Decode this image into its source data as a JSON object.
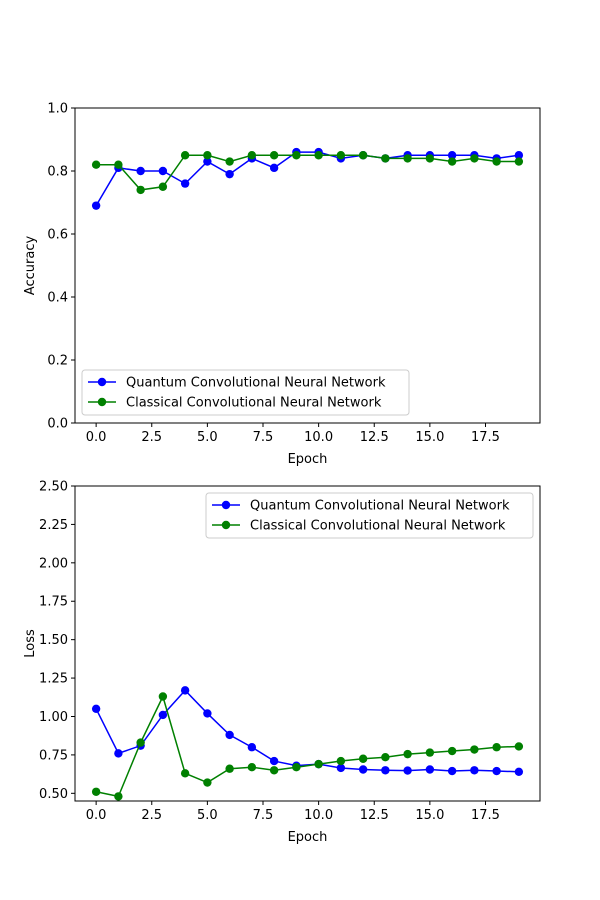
{
  "chart_data": [
    {
      "type": "line",
      "xlabel": "Epoch",
      "ylabel": "Accuracy",
      "xlim": [
        -0.95,
        19.95
      ],
      "ylim": [
        0.0,
        1.0
      ],
      "xticks": [
        0,
        2.5,
        5,
        7.5,
        10,
        12.5,
        15,
        17.5
      ],
      "xtick_labels": [
        "0.0",
        "2.5",
        "5.0",
        "7.5",
        "10.0",
        "12.5",
        "15.0",
        "17.5"
      ],
      "yticks": [
        0,
        0.2,
        0.4,
        0.6,
        0.8,
        1.0
      ],
      "ytick_labels": [
        "0.0",
        "0.2",
        "0.4",
        "0.6",
        "0.8",
        "1.0"
      ],
      "legend_position": "lower-left",
      "grid": false,
      "x": [
        0,
        1,
        2,
        3,
        4,
        5,
        6,
        7,
        8,
        9,
        10,
        11,
        12,
        13,
        14,
        15,
        16,
        17,
        18,
        19
      ],
      "series": [
        {
          "name": "Quantum Convolutional Neural Network",
          "color": "#0000ff",
          "values": [
            0.69,
            0.81,
            0.8,
            0.8,
            0.76,
            0.83,
            0.79,
            0.84,
            0.81,
            0.86,
            0.86,
            0.84,
            0.85,
            0.84,
            0.85,
            0.85,
            0.85,
            0.85,
            0.84,
            0.85
          ]
        },
        {
          "name": "Classical Convolutional Neural Network",
          "color": "#008000",
          "values": [
            0.82,
            0.82,
            0.74,
            0.75,
            0.85,
            0.85,
            0.83,
            0.85,
            0.85,
            0.85,
            0.85,
            0.85,
            0.85,
            0.84,
            0.84,
            0.84,
            0.83,
            0.84,
            0.83,
            0.83
          ]
        }
      ]
    },
    {
      "type": "line",
      "xlabel": "Epoch",
      "ylabel": "Loss",
      "xlim": [
        -0.95,
        19.95
      ],
      "ylim": [
        0.45,
        2.5
      ],
      "xticks": [
        0,
        2.5,
        5,
        7.5,
        10,
        12.5,
        15,
        17.5
      ],
      "xtick_labels": [
        "0.0",
        "2.5",
        "5.0",
        "7.5",
        "10.0",
        "12.5",
        "15.0",
        "17.5"
      ],
      "yticks": [
        0.5,
        0.75,
        1.0,
        1.25,
        1.5,
        1.75,
        2.0,
        2.25,
        2.5
      ],
      "ytick_labels": [
        "0.50",
        "0.75",
        "1.00",
        "1.25",
        "1.50",
        "1.75",
        "2.00",
        "2.25",
        "2.50"
      ],
      "legend_position": "upper-right",
      "grid": false,
      "x": [
        0,
        1,
        2,
        3,
        4,
        5,
        6,
        7,
        8,
        9,
        10,
        11,
        12,
        13,
        14,
        15,
        16,
        17,
        18,
        19
      ],
      "series": [
        {
          "name": "Quantum Convolutional Neural Network",
          "color": "#0000ff",
          "values": [
            1.05,
            0.76,
            0.81,
            1.01,
            1.17,
            1.02,
            0.88,
            0.8,
            0.71,
            0.68,
            0.69,
            0.665,
            0.655,
            0.65,
            0.648,
            0.655,
            0.645,
            0.65,
            0.645,
            0.64
          ]
        },
        {
          "name": "Classical Convolutional Neural Network",
          "color": "#008000",
          "values": [
            0.51,
            0.48,
            0.83,
            1.13,
            0.63,
            0.57,
            0.66,
            0.67,
            0.65,
            0.67,
            0.69,
            0.71,
            0.725,
            0.735,
            0.755,
            0.765,
            0.775,
            0.785,
            0.8,
            0.805
          ]
        }
      ]
    }
  ]
}
